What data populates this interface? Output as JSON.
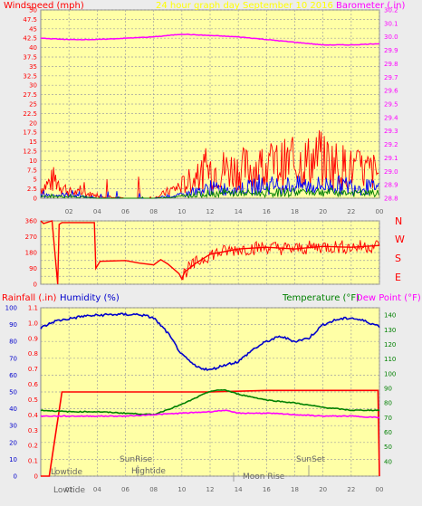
{
  "colors": {
    "background": "#ececec",
    "panel": "#ffffa6",
    "grid": "#a0a0a0",
    "axis_text": "#666666",
    "wind": "#ff0000",
    "gust_mid": "#0000ff",
    "wind_low": "#008000",
    "barometer": "#ff00ff",
    "title": "#ffff00",
    "rain": "#ff0000",
    "humidity": "#0000cc",
    "temperature": "#008000",
    "dewpoint": "#ff00ff"
  },
  "header": {
    "windspeed_label": "Windspeed (mph)",
    "title": "24 hour graph day    September 10 2016",
    "barometer_label": "Barometer (.in)"
  },
  "bottom_labels": {
    "rainfall": "Rainfall (.in)",
    "humidity": "Humidity (%)",
    "temperature": "Temperature (°F)",
    "dewpoint": "Dew Point (°F)"
  },
  "compass": [
    "N",
    "W",
    "S",
    "E",
    "N"
  ],
  "events": {
    "lowtide_top": "Lowtide",
    "lowtide_bottom": "Lowtide",
    "sunrise": "SunRise",
    "hightide": "Hightide",
    "moonrise": "Moon Rise",
    "sunset": "SunSet"
  },
  "chart_data": [
    {
      "type": "line",
      "x_ticks": [
        "02",
        "04",
        "06",
        "08",
        "10",
        "12",
        "14",
        "16",
        "18",
        "20",
        "22",
        "00"
      ],
      "y_left": {
        "label": "Windspeed (mph)",
        "ticks": [
          0,
          2.5,
          5,
          7.5,
          10,
          12.5,
          15,
          17.5,
          20,
          22.5,
          25,
          27.5,
          30,
          32.5,
          35,
          37.5,
          40,
          42.5,
          45,
          47.5,
          50
        ],
        "range": [
          0,
          50
        ]
      },
      "y_right": {
        "label": "Barometer (.in)",
        "ticks": [
          28.8,
          28.9,
          29,
          29.1,
          29.2,
          29.3,
          29.4,
          29.5,
          29.6,
          29.7,
          29.8,
          29.9,
          30,
          30.1,
          30.2
        ],
        "range": [
          28.8,
          30.2
        ]
      },
      "series": [
        {
          "name": "Barometer",
          "axis": "right",
          "x": [
            0,
            2,
            4,
            6,
            8,
            10,
            12,
            14,
            16,
            18,
            20,
            22,
            24
          ],
          "values": [
            29.99,
            29.98,
            29.98,
            29.99,
            30.0,
            30.02,
            30.01,
            30.0,
            29.98,
            29.96,
            29.94,
            29.94,
            29.95
          ]
        },
        {
          "name": "Wind gust",
          "axis": "left",
          "x": [
            0,
            1,
            2,
            4,
            6,
            8,
            9,
            10,
            12,
            14,
            16,
            18,
            20,
            22,
            24
          ],
          "values": [
            3,
            6,
            2,
            1,
            0,
            0,
            2,
            4,
            9,
            9,
            10,
            11,
            12,
            9,
            8
          ]
        },
        {
          "name": "Wind mid",
          "axis": "left",
          "x": [
            0,
            2,
            4,
            8,
            10,
            12,
            14,
            16,
            18,
            20,
            22,
            24
          ],
          "values": [
            1,
            1,
            0,
            0,
            1,
            3,
            3,
            4,
            4,
            4,
            4,
            3
          ]
        },
        {
          "name": "Wind low",
          "axis": "left",
          "x": [
            0,
            2,
            4,
            8,
            10,
            12,
            14,
            16,
            18,
            20,
            22,
            24
          ],
          "values": [
            0.5,
            0.5,
            0,
            0,
            0.5,
            1.5,
            1.5,
            1.5,
            2,
            2,
            1.5,
            1.5
          ]
        }
      ]
    },
    {
      "type": "line",
      "x_ticks": [
        "02",
        "04",
        "06",
        "08",
        "10",
        "12",
        "14",
        "16",
        "18",
        "20",
        "22",
        "00"
      ],
      "y_left": {
        "label": "Wind Direction",
        "ticks": [
          0,
          45,
          90,
          135,
          180,
          225,
          270,
          315,
          360
        ],
        "range": [
          0,
          360
        ]
      },
      "series": [
        {
          "name": "Wind direction",
          "x": [
            0,
            0.2,
            0.8,
            1.2,
            1.3,
            1.5,
            3.8,
            3.9,
            4.2,
            6,
            7,
            8,
            8.5,
            9,
            9.8,
            10,
            10.2,
            11,
            12,
            14,
            16,
            18,
            20,
            22,
            24
          ],
          "values": [
            360,
            345,
            360,
            0,
            340,
            350,
            350,
            90,
            130,
            135,
            120,
            110,
            140,
            115,
            60,
            30,
            70,
            120,
            170,
            200,
            210,
            200,
            215,
            210,
            220
          ]
        }
      ]
    },
    {
      "type": "line",
      "x_ticks": [
        "02",
        "04",
        "06",
        "08",
        "10",
        "12",
        "14",
        "16",
        "18",
        "20",
        "22",
        "00"
      ],
      "y_left": {
        "label": "Humidity (%)",
        "ticks": [
          0,
          10,
          20,
          30,
          40,
          50,
          60,
          70,
          80,
          90,
          100
        ],
        "range": [
          0,
          100
        ]
      },
      "y_left_rain": {
        "label": "Rainfall (.in)",
        "ticks": [
          0,
          0.1,
          0.2,
          0.3,
          0.4,
          0.5,
          0.6,
          0.7,
          0.8,
          0.9,
          1,
          1.1
        ],
        "range": [
          0,
          1.1
        ]
      },
      "y_right": {
        "label": "Temperature (°F)",
        "ticks": [
          40,
          50,
          60,
          70,
          80,
          90,
          100,
          110,
          120,
          130,
          140
        ],
        "range": [
          30,
          145
        ]
      },
      "series": [
        {
          "name": "Humidity",
          "axis": "left",
          "x": [
            0,
            1,
            3,
            5,
            7,
            8,
            9,
            10,
            11,
            12,
            13,
            14,
            15,
            16,
            17,
            18,
            19,
            20,
            21,
            22,
            23,
            24
          ],
          "values": [
            88,
            92,
            95,
            96,
            96,
            94,
            85,
            72,
            65,
            63,
            66,
            68,
            75,
            80,
            83,
            80,
            82,
            90,
            93,
            94,
            92,
            89
          ]
        },
        {
          "name": "Rainfall",
          "axis": "left_rain",
          "x": [
            0,
            0.6,
            1.5,
            2,
            4,
            8,
            12,
            16,
            20,
            23.8,
            23.9,
            24
          ],
          "values": [
            0,
            0,
            0.55,
            0.55,
            0.55,
            0.55,
            0.55,
            0.56,
            0.56,
            0.56,
            0.56,
            0
          ]
        },
        {
          "name": "Temperature",
          "axis": "right",
          "x": [
            0,
            2,
            4,
            6,
            8,
            10,
            12,
            13,
            14,
            16,
            18,
            20,
            22,
            24
          ],
          "values": [
            75,
            74,
            74,
            73,
            72,
            79,
            88,
            89,
            86,
            82,
            80,
            77,
            75,
            75
          ]
        },
        {
          "name": "Dew Point",
          "axis": "right",
          "x": [
            0,
            2,
            4,
            6,
            8,
            10,
            12,
            13,
            14,
            16,
            18,
            20,
            22,
            24
          ],
          "values": [
            71,
            71,
            71,
            71,
            72,
            73,
            74,
            75,
            73,
            73,
            72,
            71,
            71,
            70
          ]
        }
      ]
    }
  ]
}
